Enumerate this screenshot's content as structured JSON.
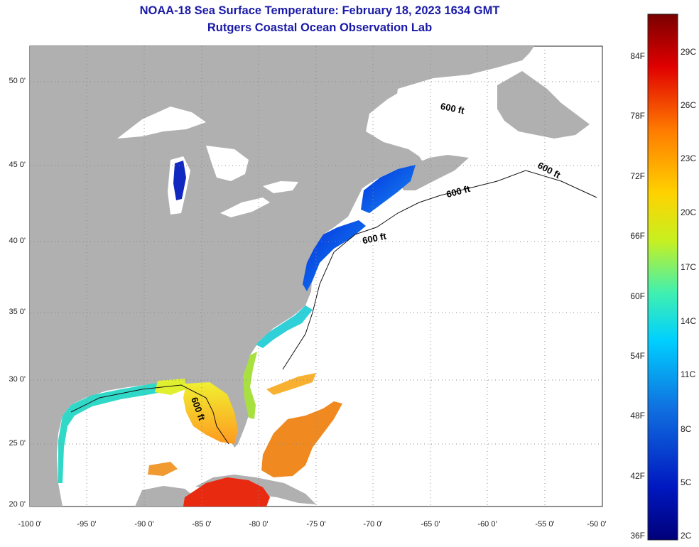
{
  "header": {
    "title": "NOAA-18 Sea Surface Temperature:  February 18, 2023 1634 GMT",
    "subtitle": "Rutgers Coastal Ocean Observation Lab"
  },
  "axes": {
    "lat_labels": [
      "50 0'",
      "45 0'",
      "40 0'",
      "35 0'",
      "30 0'",
      "25 0'",
      "20 0'"
    ],
    "lon_labels": [
      "-100 0'",
      "-95 0'",
      "-90 0'",
      "-85 0'",
      "-80 0'",
      "-75 0'",
      "-70 0'",
      "-65 0'",
      "-60 0'",
      "-55 0'",
      "-50 0'"
    ],
    "lat_range": [
      20,
      52.5
    ],
    "lon_range": [
      -100,
      -50
    ],
    "grid": "dotted"
  },
  "contour_labels": [
    "600 ft",
    "600 ft",
    "600 ft",
    "600 ft",
    "600 ft"
  ],
  "colorbar": {
    "fahrenheit_labels": [
      "84F",
      "78F",
      "72F",
      "66F",
      "60F",
      "54F",
      "48F",
      "42F",
      "36F"
    ],
    "celsius_labels": [
      "29C",
      "26C",
      "23C",
      "20C",
      "17C",
      "14C",
      "11C",
      "8C",
      "5C",
      "2C"
    ],
    "colors": [
      "#7a0000",
      "#e00000",
      "#ff7a00",
      "#ffd200",
      "#c8f020",
      "#40f0b0",
      "#00d0ff",
      "#1070e0",
      "#0018c0",
      "#00007a"
    ]
  },
  "colors": {
    "land": "#b0b0b0",
    "title": "#1a1aa8"
  }
}
